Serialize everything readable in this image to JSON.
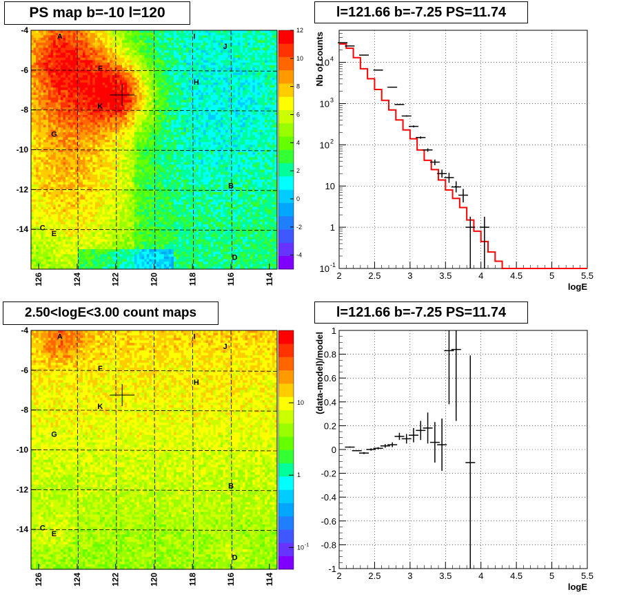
{
  "panels": {
    "map_top": {
      "title": "PS map b=-10 l=120",
      "y_ticks": [
        "-4",
        "-6",
        "-8",
        "-10",
        "-12",
        "-14"
      ],
      "x_ticks": [
        "126",
        "124",
        "122",
        "120",
        "118",
        "116",
        "114"
      ],
      "colorbar_ticks": [
        "12",
        "10",
        "8",
        "6",
        "4",
        "2",
        "0",
        "-2",
        "-4"
      ],
      "sources": [
        "A",
        "I",
        "J",
        "F",
        "H",
        "K",
        "G",
        "B",
        "C",
        "E",
        "D"
      ]
    },
    "map_bottom": {
      "title": "2.50<logE<3.00 count maps",
      "y_ticks": [
        "-4",
        "-6",
        "-8",
        "-10",
        "-12",
        "-14"
      ],
      "x_ticks": [
        "126",
        "124",
        "122",
        "120",
        "118",
        "116",
        "114"
      ],
      "colorbar_ticks": [
        "10",
        "1",
        "10"
      ],
      "colorbar_tick_exp": "-1",
      "sources": [
        "A",
        "I",
        "J",
        "F",
        "H",
        "K",
        "G",
        "B",
        "C",
        "E",
        "D"
      ]
    },
    "spectrum": {
      "title": "l=121.66 b=-7.25 PS=11.74",
      "xlabel": "logE",
      "ylabel": "Nb of counts",
      "x_ticks": [
        "2",
        "2.5",
        "3",
        "3.5",
        "4",
        "4.5",
        "5",
        "5.5"
      ],
      "y_tick_exps": [
        "-1",
        "0",
        "1",
        "2",
        "3",
        "4"
      ]
    },
    "residual": {
      "title": "l=121.66 b=-7.25 PS=11.74",
      "xlabel": "logE",
      "ylabel": "(data-model)/model",
      "x_ticks": [
        "2",
        "2.5",
        "3",
        "3.5",
        "4",
        "4.5",
        "5",
        "5.5"
      ],
      "y_ticks": [
        "1",
        "0.8",
        "0.6",
        "0.4",
        "0.2",
        "0",
        "-0.2",
        "-0.4",
        "-0.6",
        "-0.8",
        "-1"
      ]
    }
  },
  "chart_data": [
    {
      "type": "heatmap",
      "title": "PS map b=-10 l=120",
      "xlim": [
        126.4,
        113.6
      ],
      "ylim": [
        -16,
        -4
      ],
      "colorbar_range": [
        -5,
        12
      ],
      "grid": true,
      "marker": {
        "l": 121.66,
        "b": -7.25
      },
      "sources": [
        {
          "name": "A",
          "l": 124.9,
          "b": -4.3
        },
        {
          "name": "I",
          "l": 117.9,
          "b": -4.3
        },
        {
          "name": "J",
          "l": 116.3,
          "b": -4.8
        },
        {
          "name": "F",
          "l": 122.8,
          "b": -5.9
        },
        {
          "name": "H",
          "l": 117.8,
          "b": -6.6
        },
        {
          "name": "K",
          "l": 122.8,
          "b": -7.8
        },
        {
          "name": "G",
          "l": 125.2,
          "b": -9.2
        },
        {
          "name": "B",
          "l": 116.0,
          "b": -11.8
        },
        {
          "name": "C",
          "l": 125.8,
          "b": -13.9
        },
        {
          "name": "E",
          "l": 125.2,
          "b": -14.2
        },
        {
          "name": "D",
          "l": 115.8,
          "b": -15.4
        }
      ],
      "hotspots": [
        {
          "l": 121.7,
          "b": -7.2,
          "r": 1.2,
          "amp": 6
        },
        {
          "l": 124.8,
          "b": -4.8,
          "r": 1.8,
          "amp": 5
        },
        {
          "l": 124.5,
          "b": -7.2,
          "r": 2.2,
          "amp": 3
        },
        {
          "l": 124.5,
          "b": -10.5,
          "r": 3,
          "amp": 2
        }
      ]
    },
    {
      "type": "heatmap",
      "title": "2.50<logE<3.00 count maps",
      "xlim": [
        126.4,
        113.6
      ],
      "ylim": [
        -16,
        -4
      ],
      "colorbar_range": [
        0.05,
        100
      ],
      "colorbar_scale": "log",
      "grid": true,
      "marker": {
        "l": 121.66,
        "b": -7.25
      },
      "sources": [
        {
          "name": "A",
          "l": 124.9,
          "b": -4.3
        },
        {
          "name": "I",
          "l": 117.9,
          "b": -4.3
        },
        {
          "name": "J",
          "l": 116.3,
          "b": -4.8
        },
        {
          "name": "F",
          "l": 122.8,
          "b": -5.9
        },
        {
          "name": "H",
          "l": 117.8,
          "b": -6.6
        },
        {
          "name": "K",
          "l": 122.8,
          "b": -7.8
        },
        {
          "name": "G",
          "l": 125.2,
          "b": -9.2
        },
        {
          "name": "B",
          "l": 116.0,
          "b": -11.8
        },
        {
          "name": "C",
          "l": 125.8,
          "b": -13.9
        },
        {
          "name": "E",
          "l": 125.2,
          "b": -14.2
        },
        {
          "name": "D",
          "l": 115.8,
          "b": -15.4
        }
      ]
    },
    {
      "type": "line",
      "title": "l=121.66 b=-7.25 PS=11.74",
      "xlabel": "logE",
      "ylabel": "Nb of counts",
      "xlim": [
        2,
        5.5
      ],
      "ylim": [
        0.1,
        60000
      ],
      "yscale": "log",
      "grid": true,
      "model_color": "#ff0000",
      "model": {
        "bin_edges": [
          2,
          2.1,
          2.2,
          2.3,
          2.4,
          2.5,
          2.6,
          2.7,
          2.8,
          2.9,
          3.0,
          3.1,
          3.2,
          3.3,
          3.4,
          3.5,
          3.6,
          3.7,
          3.8,
          3.9,
          4.0,
          4.1,
          4.2,
          4.3,
          4.4,
          4.5,
          4.6,
          4.7,
          4.8,
          4.9,
          5.0,
          5.1,
          5.2,
          5.3,
          5.4,
          5.5
        ],
        "values": [
          28000,
          22000,
          13000,
          7000,
          4000,
          2200,
          1200,
          700,
          400,
          230,
          140,
          75,
          42,
          25,
          14,
          8,
          5,
          3,
          1.5,
          0.8,
          0.45,
          0.25,
          0.15,
          0.1,
          0.1,
          0.1,
          0.1,
          0.1,
          0.1,
          0.1,
          0.1,
          0.1,
          0.1,
          0.1,
          0.1
        ]
      },
      "data": {
        "x": [
          2.05,
          2.15,
          2.35,
          2.55,
          2.75,
          2.85,
          2.95,
          3.05,
          3.15,
          3.25,
          3.35,
          3.45,
          3.55,
          3.65,
          3.75,
          3.85,
          4.05
        ],
        "y": [
          30000,
          25000,
          15000,
          6500,
          2500,
          950,
          500,
          280,
          150,
          75,
          38,
          20,
          16,
          9.5,
          6,
          1,
          1
        ],
        "ylo": [
          29800,
          24800,
          14800,
          6400,
          2450,
          920,
          480,
          265,
          140,
          68,
          32,
          16,
          12,
          7,
          4,
          0.1,
          0.1
        ],
        "yhi": [
          30200,
          25200,
          15200,
          6600,
          2550,
          980,
          520,
          295,
          160,
          82,
          44,
          25,
          21,
          13,
          8.5,
          1.8,
          1.8
        ]
      }
    },
    {
      "type": "scatter",
      "title": "l=121.66 b=-7.25 PS=11.74",
      "xlabel": "logE",
      "ylabel": "(data-model)/model",
      "xlim": [
        2,
        5.5
      ],
      "ylim": [
        -1,
        1
      ],
      "grid": true,
      "x": [
        2.15,
        2.25,
        2.35,
        2.45,
        2.55,
        2.65,
        2.75,
        2.85,
        2.95,
        3.05,
        3.15,
        3.25,
        3.35,
        3.45,
        3.55,
        3.65,
        3.85
      ],
      "y": [
        0.02,
        -0.01,
        -0.03,
        0.0,
        0.01,
        0.03,
        0.04,
        0.11,
        0.09,
        0.12,
        0.16,
        0.18,
        0.06,
        0.04,
        0.83,
        0.84,
        -0.11
      ],
      "err": [
        0.005,
        0.005,
        0.008,
        0.01,
        0.01,
        0.015,
        0.02,
        0.03,
        0.04,
        0.06,
        0.08,
        0.13,
        0.17,
        0.22,
        0.45,
        0.6,
        0.9
      ]
    }
  ]
}
